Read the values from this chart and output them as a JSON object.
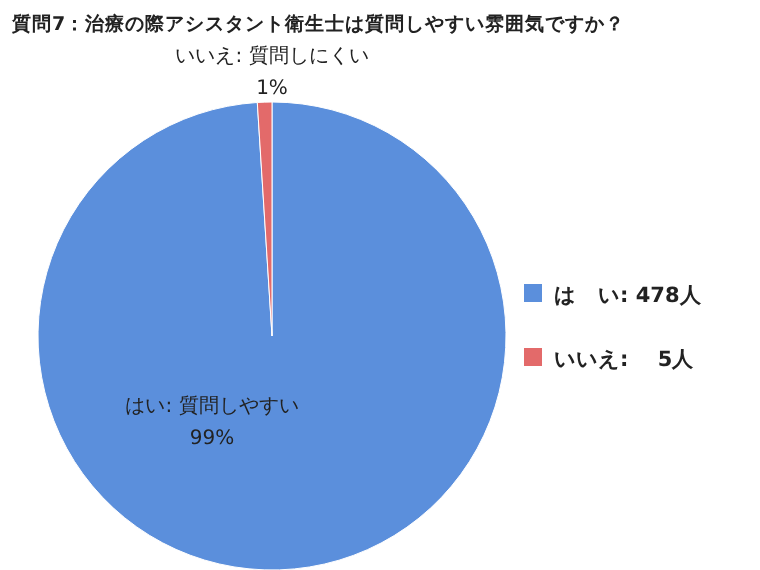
{
  "chart_data": {
    "type": "pie",
    "title": "質問7：治療の際アシスタント衛生士は質問しやすい雰囲気ですか？",
    "categories": [
      "は　い: 478人",
      "いいえ:　 5人"
    ],
    "values": [
      99,
      1
    ],
    "value_labels": [
      "99%",
      "1%"
    ],
    "colors": [
      "#5b8fdc",
      "#e36a6a"
    ],
    "legend": "right",
    "annotations": [
      "はい: 質問しやすい",
      "いいえ: 質問しにくい"
    ]
  }
}
